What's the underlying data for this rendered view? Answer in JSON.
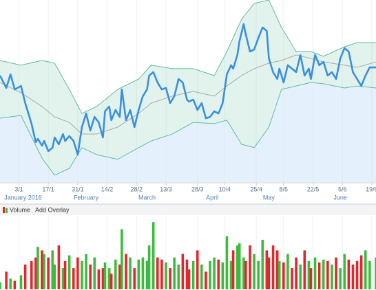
{
  "chart_data": {
    "type": "line",
    "xlim": [
      -6,
      173
    ],
    "ylim": [
      0,
      100
    ],
    "grid": true,
    "xticks": [
      {
        "value": 3,
        "label": "3/1"
      },
      {
        "value": 17,
        "label": "17/1"
      },
      {
        "value": 31,
        "label": "31/1"
      },
      {
        "value": 45,
        "label": "14/2"
      },
      {
        "value": 59,
        "label": "28/2"
      },
      {
        "value": 73,
        "label": "13/3"
      },
      {
        "value": 88,
        "label": "28/3"
      },
      {
        "value": 101,
        "label": "10/4"
      },
      {
        "value": 116,
        "label": "25/4"
      },
      {
        "value": 129,
        "label": "8/5"
      },
      {
        "value": 143,
        "label": "22/5"
      },
      {
        "value": 157,
        "label": "5/6"
      },
      {
        "value": 171,
        "label": "19/6"
      }
    ],
    "month_labels": [
      {
        "value": 5,
        "label": "January 2016"
      },
      {
        "value": 35,
        "label": "February"
      },
      {
        "value": 64,
        "label": "March"
      },
      {
        "value": 95,
        "label": "April"
      },
      {
        "value": 122,
        "label": "May"
      },
      {
        "value": 156,
        "label": "June"
      }
    ],
    "x": [
      -6,
      -3,
      -1,
      1,
      4,
      6,
      9,
      11,
      12,
      14,
      15,
      17,
      19,
      20,
      22,
      24,
      25,
      27,
      29,
      31,
      33,
      35,
      37,
      39,
      41,
      43,
      44,
      46,
      47,
      49,
      51,
      52,
      54,
      56,
      58,
      60,
      62,
      64,
      65,
      67,
      69,
      71,
      73,
      75,
      77,
      79,
      81,
      83,
      84,
      86,
      88,
      90,
      92,
      94,
      96,
      98,
      100,
      102,
      104,
      105,
      107,
      108,
      110,
      111,
      113,
      115,
      117,
      119,
      121,
      122,
      124,
      126,
      127,
      129,
      131,
      133,
      135,
      137,
      139,
      141,
      142,
      144,
      146,
      148,
      150,
      152,
      154,
      156,
      158,
      160,
      162,
      164,
      166,
      168,
      170,
      173
    ],
    "price": {
      "color": "#3a8fe0",
      "values": [
        58.5,
        51.7,
        59.2,
        50.9,
        52.8,
        43.4,
        32.1,
        21.9,
        23.8,
        20,
        22.6,
        17,
        18.9,
        24.5,
        20.8,
        26.4,
        22.6,
        25.3,
        22.6,
        15.1,
        30.2,
        37.7,
        28.3,
        35.8,
        32.8,
        24.5,
        38.9,
        41.5,
        34,
        39.6,
        35.8,
        50.9,
        34,
        39.6,
        30.2,
        39.6,
        47.2,
        50.9,
        58.5,
        60.4,
        54.7,
        50.9,
        51.7,
        43.4,
        47.2,
        56.6,
        54.7,
        45.3,
        44.2,
        45.3,
        39.6,
        43.4,
        35.1,
        35.8,
        38.9,
        37.7,
        43.4,
        59.2,
        64.2,
        62.3,
        69.8,
        77.4,
        86.8,
        81.1,
        71.7,
        72.8,
        79.2,
        84.9,
        83,
        67.9,
        60.4,
        56.6,
        62.3,
        54.7,
        64.2,
        62.3,
        60.4,
        69.8,
        58.5,
        62.3,
        56.6,
        69.8,
        64.2,
        66,
        58.5,
        60.4,
        56.6,
        67.9,
        73.6,
        71.7,
        60.4,
        56.6,
        52.8,
        58.5,
        63,
        63
      ]
    },
    "bands": {
      "band_color": "#62b9a6",
      "middle_color": "#a8a8a8",
      "x": [
        -6,
        4,
        14,
        20,
        27,
        33,
        40,
        50,
        60,
        66,
        76,
        86,
        96,
        102,
        109,
        115,
        122,
        128,
        135,
        142,
        148,
        158,
        164,
        173
      ],
      "upper": [
        66.8,
        64.2,
        66.8,
        65.3,
        50.9,
        37.7,
        41.5,
        50.9,
        56.6,
        64.2,
        62.3,
        62.3,
        58.5,
        71.7,
        89.4,
        98.1,
        100,
        84.9,
        71.7,
        71.7,
        69.1,
        74.3,
        76.6,
        76.6
      ],
      "middle": [
        54.7,
        49.1,
        41.5,
        35.8,
        32.8,
        26.4,
        26.4,
        30.2,
        37.7,
        43.4,
        47.2,
        49.8,
        47.2,
        52.8,
        58.5,
        62.3,
        65.3,
        66.8,
        69.8,
        67.9,
        66,
        64.2,
        63,
        66
      ],
      "lower": [
        35.1,
        36.6,
        13.2,
        3.8,
        7.5,
        18.9,
        15.1,
        12.5,
        18.9,
        22.6,
        26.4,
        32.8,
        32.1,
        34,
        20.8,
        18.9,
        30.2,
        50.9,
        52.8,
        54.7,
        54,
        51.7,
        52.8,
        51.7
      ]
    },
    "volume": {
      "name": "Volume",
      "ylim": [
        0,
        100
      ],
      "up_color": "#3dbb3d",
      "down_color": "#e2262b",
      "values": [
        10,
        25,
        15,
        12,
        20,
        35,
        40,
        45,
        60,
        55,
        50,
        45,
        55,
        35,
        62,
        30,
        40,
        48,
        30,
        45,
        40,
        50,
        35,
        45,
        28,
        30,
        38,
        30,
        22,
        42,
        35,
        85,
        50,
        45,
        30,
        42,
        45,
        40,
        62,
        95,
        45,
        42,
        38,
        30,
        45,
        35,
        50,
        42,
        28,
        40,
        55,
        35,
        25,
        40,
        45,
        42,
        38,
        75,
        40,
        55,
        62,
        65,
        45,
        40,
        62,
        50,
        40,
        70,
        55,
        45,
        62,
        55,
        40,
        38,
        50,
        30,
        45,
        35,
        55,
        40,
        30,
        45,
        38,
        42,
        40,
        35,
        45,
        30,
        50,
        42,
        35,
        40,
        48,
        55,
        40,
        45
      ]
    },
    "toolbar_button": "Add Overlay"
  }
}
